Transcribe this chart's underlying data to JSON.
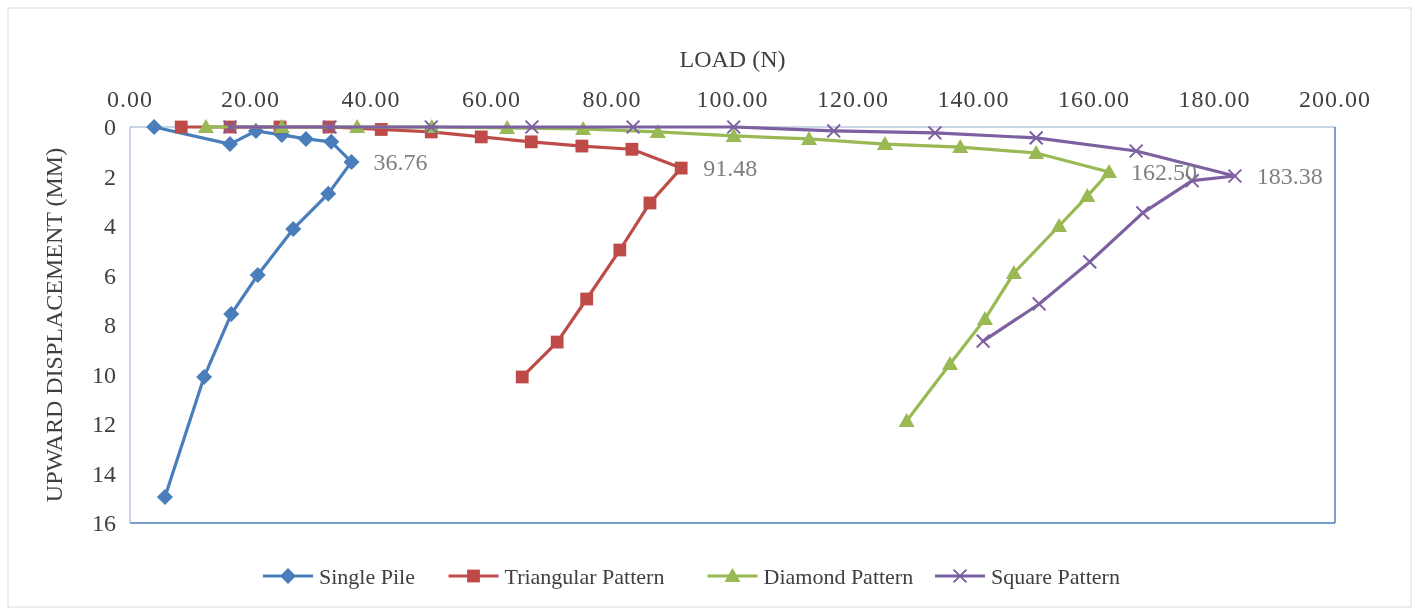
{
  "chart_data": {
    "type": "line",
    "xlabel": "LOAD (N)",
    "ylabel": "UPWARD DISPLACEMENT (MM)",
    "xlim": [
      0,
      200
    ],
    "xticks": [
      {
        "value": 0,
        "label": "0.00"
      },
      {
        "value": 20,
        "label": "20.00"
      },
      {
        "value": 40,
        "label": "40.00"
      },
      {
        "value": 60,
        "label": "60.00"
      },
      {
        "value": 80,
        "label": "80.00"
      },
      {
        "value": 100,
        "label": "100.00"
      },
      {
        "value": 120,
        "label": "120.00"
      },
      {
        "value": 140,
        "label": "140.00"
      },
      {
        "value": 160,
        "label": "160.00"
      },
      {
        "value": 180,
        "label": "180.00"
      },
      {
        "value": 200,
        "label": "200.00"
      }
    ],
    "ylim": [
      16,
      0
    ],
    "yticks": [
      0,
      2,
      4,
      6,
      8,
      10,
      12,
      14,
      16
    ],
    "grid": false,
    "legend": "bottom",
    "series": [
      {
        "name": "Single Pile",
        "color": "#4a7ebb",
        "marker": "diamond",
        "x": [
          4.0,
          16.6,
          20.9,
          25.2,
          29.2,
          33.4,
          36.76,
          32.9,
          27.1,
          21.2,
          16.8,
          12.3,
          5.8
        ],
        "values": [
          0,
          0.69,
          0.16,
          0.32,
          0.48,
          0.6,
          1.41,
          2.7,
          4.12,
          5.98,
          7.56,
          10.1,
          14.95
        ]
      },
      {
        "name": "Triangular Pattern",
        "color": "#be4b48",
        "marker": "square",
        "x": [
          8.5,
          16.6,
          24.9,
          33,
          41.7,
          50,
          58.3,
          66.6,
          75,
          83.3,
          91.48,
          86.3,
          81.3,
          75.8,
          70.9,
          65.1
        ],
        "values": [
          0,
          0,
          0,
          0,
          0.1,
          0.2,
          0.4,
          0.6,
          0.77,
          0.9,
          1.66,
          3.07,
          4.97,
          6.95,
          8.69,
          10.1
        ]
      },
      {
        "name": "Diamond Pattern",
        "color": "#98b954",
        "marker": "triangle",
        "x": [
          12.6,
          25.2,
          37.7,
          50.1,
          62.6,
          75.2,
          87.6,
          100.2,
          112.7,
          125.3,
          137.8,
          150.4,
          162.5,
          158.9,
          154.2,
          146.7,
          141.9,
          136.1,
          128.9
        ],
        "values": [
          0,
          0,
          0,
          0,
          0.04,
          0.08,
          0.2,
          0.36,
          0.48,
          0.69,
          0.81,
          1.05,
          1.82,
          2.79,
          4.0,
          5.9,
          7.76,
          9.58,
          11.88
        ]
      },
      {
        "name": "Square Pattern",
        "color": "#7d60a0",
        "marker": "cross",
        "x": [
          16.6,
          33.2,
          50,
          66.7,
          83.5,
          100.2,
          116.8,
          133.6,
          150.4,
          167,
          183.38,
          176.3,
          168.1,
          159.3,
          150.9,
          141.6
        ],
        "values": [
          0,
          0,
          0,
          0,
          0,
          0,
          0.16,
          0.24,
          0.44,
          0.97,
          1.98,
          2.17,
          3.47,
          5.45,
          7.15,
          8.65
        ]
      }
    ],
    "annotations": [
      {
        "text": "36.76",
        "x": 36.76,
        "y": 1.41
      },
      {
        "text": "91.48",
        "x": 91.48,
        "y": 1.66
      },
      {
        "text": "162.50",
        "x": 162.5,
        "y": 1.82
      },
      {
        "text": "183.38",
        "x": 183.38,
        "y": 1.98
      }
    ]
  }
}
